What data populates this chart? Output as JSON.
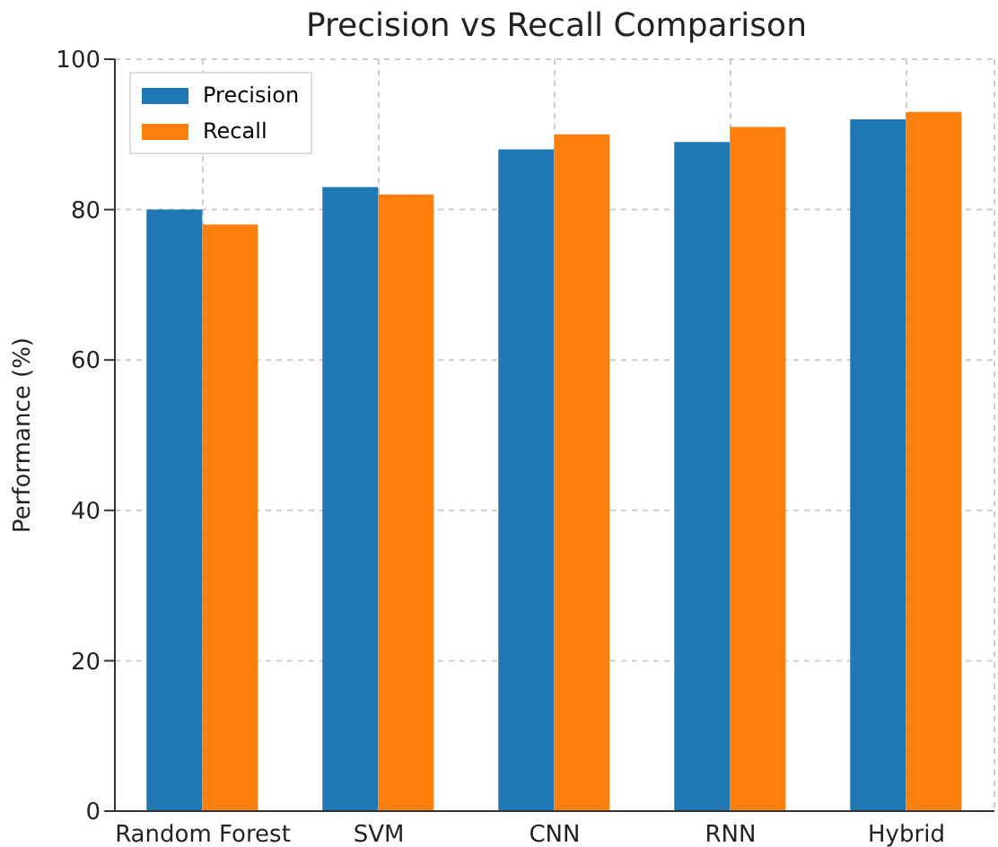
{
  "chart_data": {
    "type": "bar",
    "title": "Precision vs Recall Comparison",
    "ylabel": "Performance (%)",
    "categories": [
      "Random Forest",
      "SVM",
      "CNN",
      "RNN",
      "Hybrid"
    ],
    "series": [
      {
        "name": "Precision",
        "color": "#1f77b4",
        "values": [
          80,
          83,
          88,
          89,
          92
        ]
      },
      {
        "name": "Recall",
        "color": "#ff7f0e",
        "values": [
          78,
          82,
          90,
          91,
          93
        ]
      }
    ],
    "ylim": [
      0,
      100
    ],
    "yticks": [
      0,
      20,
      40,
      60,
      80,
      100
    ],
    "grid": true,
    "legend": "top left"
  }
}
